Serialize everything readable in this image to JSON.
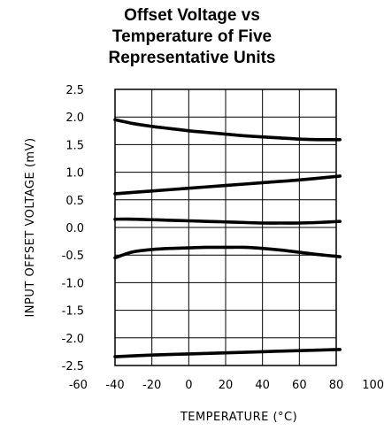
{
  "chart_data": {
    "type": "line",
    "title_lines": [
      "Offset Voltage vs",
      "Temperature of Five",
      "Representative Units"
    ],
    "xlabel": "TEMPERATURE (°C)",
    "ylabel": "INPUT OFFSET VOLTAGE (mV)",
    "xlim": [
      -60,
      100
    ],
    "ylim": [
      -2.5,
      2.5
    ],
    "x_ticks": [
      -60,
      -40,
      -20,
      0,
      20,
      40,
      60,
      80,
      100
    ],
    "y_ticks": [
      2.5,
      2.0,
      1.5,
      1.0,
      0.5,
      0.0,
      -0.5,
      -1.0,
      -1.5,
      -2.0,
      -2.5
    ],
    "x_tick_labels": [
      "-60",
      "-40",
      "-20",
      "0",
      "20",
      "40",
      "60",
      "80",
      "100"
    ],
    "y_tick_labels": [
      "2.5",
      "2.0",
      "1.5",
      "1.0",
      "0.5",
      "0.0",
      "-0.5",
      "-1.0",
      "-1.5",
      "-2.0",
      "-2.5"
    ],
    "grid": true,
    "series": [
      {
        "x": [
          -40,
          -30,
          -20,
          -10,
          0,
          10,
          20,
          30,
          40,
          50,
          60,
          70,
          82
        ],
        "values": [
          1.95,
          1.88,
          1.83,
          1.79,
          1.75,
          1.72,
          1.69,
          1.66,
          1.64,
          1.62,
          1.6,
          1.59,
          1.59
        ]
      },
      {
        "x": [
          -40,
          -20,
          0,
          20,
          40,
          60,
          82
        ],
        "values": [
          0.61,
          0.66,
          0.71,
          0.76,
          0.81,
          0.86,
          0.93
        ]
      },
      {
        "x": [
          -40,
          -30,
          -20,
          -10,
          0,
          10,
          20,
          30,
          40,
          50,
          60,
          70,
          82
        ],
        "values": [
          0.15,
          0.15,
          0.14,
          0.13,
          0.12,
          0.11,
          0.1,
          0.09,
          0.08,
          0.08,
          0.08,
          0.09,
          0.11
        ]
      },
      {
        "x": [
          -40,
          -35,
          -30,
          -20,
          -10,
          0,
          10,
          20,
          30,
          40,
          50,
          60,
          70,
          82
        ],
        "values": [
          -0.55,
          -0.49,
          -0.44,
          -0.4,
          -0.38,
          -0.37,
          -0.36,
          -0.36,
          -0.36,
          -0.38,
          -0.41,
          -0.45,
          -0.49,
          -0.53
        ]
      },
      {
        "x": [
          -40,
          -20,
          0,
          20,
          40,
          60,
          82
        ],
        "values": [
          -2.34,
          -2.31,
          -2.29,
          -2.27,
          -2.25,
          -2.23,
          -2.21
        ]
      }
    ]
  }
}
